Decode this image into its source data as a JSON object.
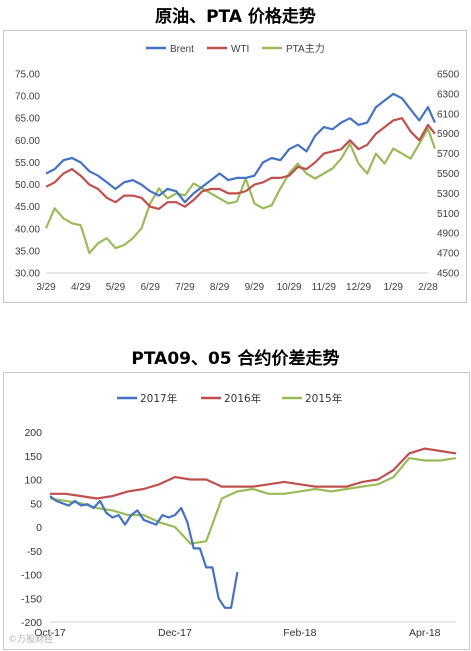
{
  "chart1": {
    "title": "原油、PTA 价格走势",
    "colors": {
      "Brent": "#4472C4",
      "WTI": "#C0504D",
      "PTA": "#9BBB59"
    },
    "chart_data": {
      "type": "line",
      "x_ticks": [
        "3/29",
        "4/29",
        "5/29",
        "6/29",
        "7/29",
        "8/29",
        "9/29",
        "10/29",
        "11/29",
        "12/29",
        "1/29",
        "2/28"
      ],
      "y_left": {
        "ticks": [
          "75.00",
          "70.00",
          "65.00",
          "60.00",
          "55.00",
          "50.00",
          "45.00",
          "40.00",
          "35.00",
          "30.00"
        ],
        "range": [
          30,
          75
        ]
      },
      "y_right": {
        "ticks": [
          "6500",
          "6300",
          "6100",
          "5900",
          "5700",
          "5500",
          "5300",
          "5100",
          "4900",
          "4700",
          "4500"
        ],
        "range": [
          4500,
          6500
        ]
      },
      "series": [
        {
          "name": "Brent",
          "axis": "left",
          "x": [
            0,
            0.25,
            0.5,
            0.75,
            1,
            1.25,
            1.5,
            1.75,
            2,
            2.25,
            2.5,
            2.75,
            3,
            3.25,
            3.5,
            3.75,
            4,
            4.25,
            4.5,
            4.75,
            5,
            5.25,
            5.5,
            5.75,
            6,
            6.25,
            6.5,
            6.75,
            7,
            7.25,
            7.5,
            7.75,
            8,
            8.25,
            8.5,
            8.75,
            9,
            9.25,
            9.5,
            9.75,
            10,
            10.25,
            10.5,
            10.75,
            11,
            11.2
          ],
          "values": [
            52.5,
            53.5,
            55.5,
            56,
            55,
            53,
            52,
            50.5,
            49,
            50.5,
            51,
            50,
            48.5,
            47.5,
            49,
            48.5,
            46,
            48,
            49.5,
            51,
            52.5,
            51,
            51.5,
            51.5,
            52,
            55,
            56,
            55.5,
            58,
            59,
            57.5,
            61,
            63,
            62.5,
            64,
            65,
            63.5,
            64,
            67.5,
            69,
            70.5,
            69.5,
            67,
            64.5,
            67.5,
            64
          ]
        },
        {
          "name": "WTI",
          "axis": "left",
          "x": [
            0,
            0.25,
            0.5,
            0.75,
            1,
            1.25,
            1.5,
            1.75,
            2,
            2.25,
            2.5,
            2.75,
            3,
            3.25,
            3.5,
            3.75,
            4,
            4.25,
            4.5,
            4.75,
            5,
            5.25,
            5.5,
            5.75,
            6,
            6.25,
            6.5,
            6.75,
            7,
            7.25,
            7.5,
            7.75,
            8,
            8.25,
            8.5,
            8.75,
            9,
            9.25,
            9.5,
            9.75,
            10,
            10.25,
            10.5,
            10.75,
            11,
            11.2
          ],
          "values": [
            49.5,
            50.5,
            52.5,
            53.5,
            52,
            50,
            49,
            47,
            46,
            47.5,
            47.5,
            47,
            45,
            44.5,
            46,
            46,
            45,
            46.5,
            48.5,
            49,
            49,
            48,
            48,
            48.5,
            50,
            50.5,
            51.5,
            51.5,
            52,
            54,
            53.5,
            55,
            57,
            57.5,
            58,
            60,
            58,
            59,
            61.5,
            63,
            64.5,
            65,
            62,
            60,
            63.5,
            61.5
          ]
        },
        {
          "name": "PTA主力",
          "axis": "right",
          "x": [
            0,
            0.25,
            0.5,
            0.75,
            1,
            1.25,
            1.5,
            1.75,
            2,
            2.25,
            2.5,
            2.75,
            3,
            3.25,
            3.5,
            3.75,
            4,
            4.25,
            4.5,
            4.75,
            5,
            5.25,
            5.5,
            5.75,
            6,
            6.25,
            6.5,
            6.75,
            7,
            7.25,
            7.5,
            7.75,
            8,
            8.25,
            8.5,
            8.75,
            9,
            9.25,
            9.5,
            9.75,
            10,
            10.25,
            10.5,
            10.75,
            11,
            11.2
          ],
          "values": [
            4950,
            5150,
            5050,
            5000,
            4980,
            4700,
            4800,
            4850,
            4750,
            4780,
            4850,
            4950,
            5200,
            5350,
            5250,
            5300,
            5280,
            5400,
            5350,
            5300,
            5250,
            5200,
            5220,
            5450,
            5200,
            5150,
            5180,
            5350,
            5500,
            5600,
            5500,
            5450,
            5500,
            5550,
            5650,
            5800,
            5600,
            5500,
            5700,
            5600,
            5750,
            5700,
            5650,
            5800,
            5950,
            5750
          ]
        }
      ]
    }
  },
  "chart2": {
    "title": "PTA09、05 合约价差走势",
    "colors": {
      "2017": "#4472C4",
      "2016": "#C0504D",
      "2015": "#9BBB59"
    },
    "chart_data": {
      "type": "line",
      "x_ticks": [
        "Oct-17",
        "Dec-17",
        "Feb-18",
        "Apr-18"
      ],
      "y_ticks": [
        "200",
        "150",
        "100",
        "50",
        "0",
        "-50",
        "-100",
        "-150",
        "-200"
      ],
      "ylim": [
        -200,
        200
      ],
      "series": [
        {
          "name": "2017年",
          "x": [
            0,
            0.1,
            0.2,
            0.3,
            0.4,
            0.5,
            0.6,
            0.7,
            0.8,
            0.9,
            1.0,
            1.1,
            1.2,
            1.3,
            1.4,
            1.5,
            1.6,
            1.7,
            1.8,
            1.9,
            2.0,
            2.1,
            2.2,
            2.3,
            2.4,
            2.5,
            2.6,
            2.7,
            2.8,
            2.9,
            3.0
          ],
          "values": [
            65,
            55,
            50,
            45,
            55,
            45,
            48,
            40,
            55,
            30,
            20,
            25,
            5,
            25,
            35,
            15,
            10,
            5,
            25,
            20,
            25,
            40,
            10,
            -45,
            -45,
            -85,
            -85,
            -150,
            -170,
            -170,
            -95
          ]
        },
        {
          "name": "2016年",
          "x": [
            0,
            0.25,
            0.5,
            0.75,
            1,
            1.25,
            1.5,
            1.75,
            2,
            2.25,
            2.5,
            2.75,
            3,
            3.25,
            3.5,
            3.75,
            4,
            4.25,
            4.5,
            4.75,
            5,
            5.25,
            5.5,
            5.75,
            6,
            6.25,
            6.5
          ],
          "values": [
            70,
            70,
            65,
            60,
            65,
            75,
            80,
            90,
            105,
            100,
            100,
            85,
            85,
            85,
            90,
            95,
            90,
            85,
            85,
            85,
            95,
            100,
            120,
            155,
            165,
            160,
            155
          ]
        },
        {
          "name": "2015年",
          "x": [
            0,
            0.25,
            0.5,
            0.75,
            1,
            1.25,
            1.5,
            1.75,
            2,
            2.25,
            2.5,
            2.75,
            3,
            3.25,
            3.5,
            3.75,
            4,
            4.25,
            4.5,
            4.75,
            5,
            5.25,
            5.5,
            5.75,
            6,
            6.25,
            6.5
          ],
          "values": [
            60,
            55,
            50,
            40,
            35,
            25,
            25,
            10,
            0,
            -35,
            -30,
            60,
            75,
            80,
            70,
            70,
            75,
            80,
            75,
            80,
            85,
            90,
            105,
            145,
            140,
            140,
            145
          ]
        }
      ]
    }
  },
  "watermark": "©万股财经"
}
